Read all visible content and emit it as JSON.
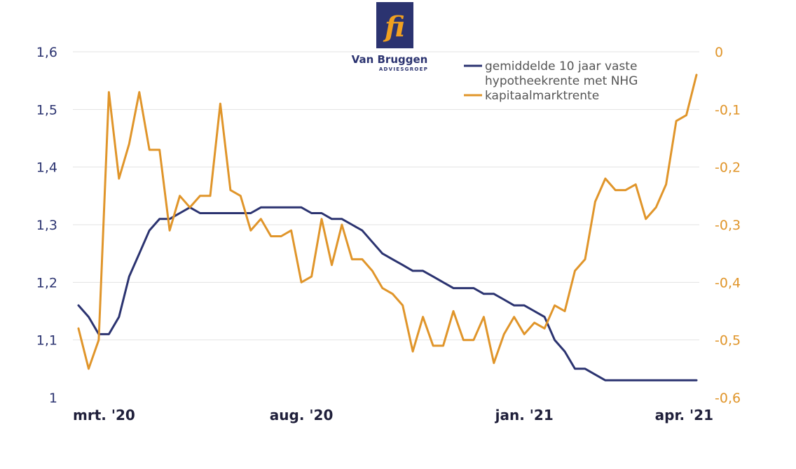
{
  "logo": {
    "name": "Van Bruggen",
    "subtitle": "ADVIESGROEP",
    "glyph": "fi",
    "colors": {
      "box": "#2b3370",
      "glyph": "#f0a020",
      "text": "#2b3370"
    }
  },
  "chart_data": {
    "type": "line",
    "grid": true,
    "legend_position": "top-right",
    "x_tick_labels": [
      "mrt. '20",
      "aug. '20",
      "jan. '21",
      "apr. '21"
    ],
    "x_tick_index": [
      0,
      22,
      44,
      61
    ],
    "y_left": {
      "min": 1.0,
      "max": 1.6,
      "ticks": [
        "1",
        "1,1",
        "1,2",
        "1,3",
        "1,4",
        "1,5",
        "1,6"
      ]
    },
    "y_right": {
      "min": -0.6,
      "max": 0.0,
      "ticks": [
        "-0,6",
        "-0,5",
        "-0,4",
        "-0,3",
        "-0,2",
        "-0,1",
        "0"
      ]
    },
    "series": [
      {
        "name": "gemiddelde 10 jaar vaste hypotheekrente met NHG",
        "name_lines": [
          "gemiddelde 10 jaar vaste",
          "hypotheekrente met NHG"
        ],
        "axis": "left",
        "color": "#2b3370",
        "values": [
          1.16,
          1.14,
          1.11,
          1.11,
          1.14,
          1.21,
          1.25,
          1.29,
          1.31,
          1.31,
          1.32,
          1.33,
          1.32,
          1.32,
          1.32,
          1.32,
          1.32,
          1.32,
          1.33,
          1.33,
          1.33,
          1.33,
          1.33,
          1.32,
          1.32,
          1.31,
          1.31,
          1.3,
          1.29,
          1.27,
          1.25,
          1.24,
          1.23,
          1.22,
          1.22,
          1.21,
          1.2,
          1.19,
          1.19,
          1.19,
          1.18,
          1.18,
          1.17,
          1.16,
          1.16,
          1.15,
          1.14,
          1.1,
          1.08,
          1.05,
          1.05,
          1.04,
          1.03,
          1.03,
          1.03,
          1.03,
          1.03,
          1.03,
          1.03,
          1.03,
          1.03,
          1.03
        ]
      },
      {
        "name": "kapitaalmarktrente",
        "name_lines": [
          "kapitaalmarktrente"
        ],
        "axis": "right",
        "color": "#e0952a",
        "values": [
          -0.48,
          -0.55,
          -0.5,
          -0.07,
          -0.22,
          -0.16,
          -0.07,
          -0.17,
          -0.17,
          -0.31,
          -0.25,
          -0.27,
          -0.25,
          -0.25,
          -0.09,
          -0.24,
          -0.25,
          -0.31,
          -0.29,
          -0.32,
          -0.32,
          -0.31,
          -0.4,
          -0.39,
          -0.29,
          -0.37,
          -0.3,
          -0.36,
          -0.36,
          -0.38,
          -0.41,
          -0.42,
          -0.44,
          -0.52,
          -0.46,
          -0.51,
          -0.51,
          -0.45,
          -0.5,
          -0.5,
          -0.46,
          -0.54,
          -0.49,
          -0.46,
          -0.49,
          -0.47,
          -0.48,
          -0.44,
          -0.45,
          -0.38,
          -0.36,
          -0.26,
          -0.22,
          -0.24,
          -0.24,
          -0.23,
          -0.29,
          -0.27,
          -0.23,
          -0.12,
          -0.11,
          -0.04
        ]
      }
    ]
  }
}
